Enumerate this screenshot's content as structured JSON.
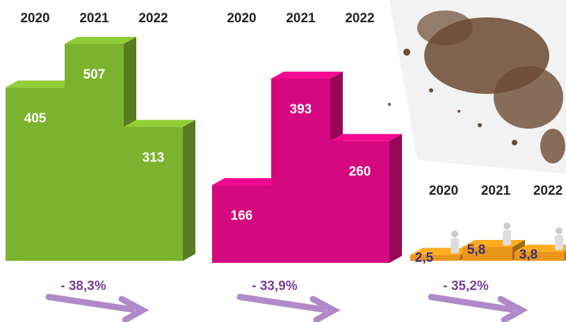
{
  "chart_data": [
    {
      "type": "bar",
      "categories": [
        "2020",
        "2021",
        "2022"
      ],
      "values": [
        405,
        507,
        313
      ],
      "color": "#7cb32e",
      "annotation": "- 38,3%"
    },
    {
      "type": "bar",
      "categories": [
        "2020",
        "2021",
        "2022"
      ],
      "values": [
        166,
        393,
        260
      ],
      "color": "#d6087f",
      "annotation": "- 33,9%"
    },
    {
      "type": "bar",
      "categories": [
        "2020",
        "2021",
        "2022"
      ],
      "values": [
        2.5,
        5.8,
        3.8
      ],
      "value_labels": [
        "2,5",
        "5,8",
        "3,8"
      ],
      "color": "#e8961c",
      "annotation": "- 35,2%"
    }
  ]
}
